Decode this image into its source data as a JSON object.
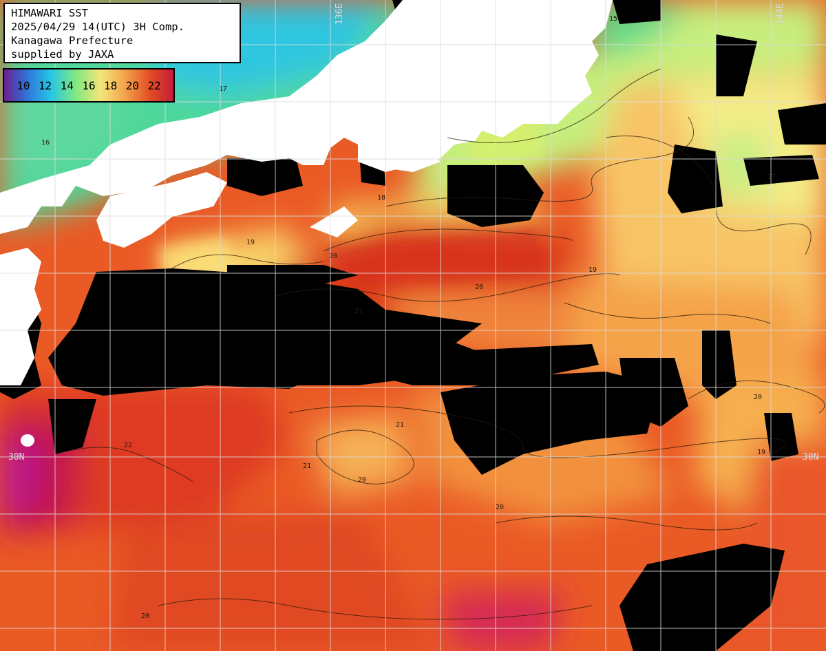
{
  "header": {
    "title": "HIMAWARI SST",
    "datetime": "2025/04/29 14(UTC) 3H Comp.",
    "prefecture": "Kanagawa Prefecture",
    "credit": "supplied by JAXA"
  },
  "legend": {
    "labels": [
      "10",
      "12",
      "14",
      "16",
      "18",
      "20",
      "22"
    ],
    "colors": [
      "#6f1a8a",
      "#2f73d8",
      "#27c6e6",
      "#7de882",
      "#f4e678",
      "#f3a34b",
      "#e24a22",
      "#c21a3b"
    ]
  },
  "grid_labels": {
    "lon_left": "136E",
    "lon_right": "144E",
    "lat_left": "30N",
    "lat_right": "30N"
  },
  "contour_labels": [
    "15",
    "16",
    "17",
    "18",
    "19",
    "20",
    "21",
    "22"
  ],
  "colors": {
    "land": "#ffffff",
    "cloud": "#000000",
    "grid": "#dcdcdc"
  }
}
